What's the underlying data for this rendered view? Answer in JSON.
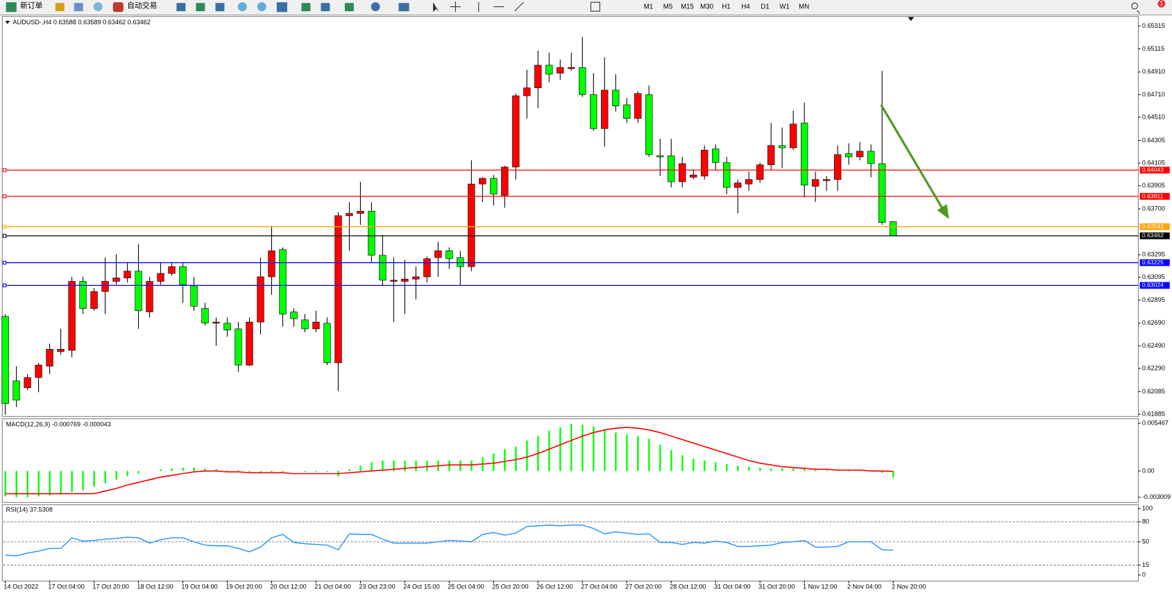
{
  "toolbar": {
    "new_order": "新订单",
    "auto_trading": "自动交易",
    "timeframes": [
      "M1",
      "M5",
      "M15",
      "M30",
      "H1",
      "H4",
      "D1",
      "W1",
      "MN"
    ],
    "badge": "1"
  },
  "chart_data": [
    {
      "type": "candlestick",
      "title": "AUDUSD-,H4 0.63588 0.63589 0.63462 0.63462",
      "x_labels": [
        "14 Oct 2022",
        "17 Oct 04:00",
        "17 Oct 20:00",
        "18 Oct 12:00",
        "19 Oct 04:00",
        "19 Oct 20:00",
        "20 Oct 12:00",
        "21 Oct 04:00",
        "23 Oct 23:00",
        "24 Oct 15:00",
        "25 Oct 04:00",
        "25 Oct 20:00",
        "26 Oct 12:00",
        "27 Oct 04:00",
        "27 Oct 20:00",
        "28 Oct 12:00",
        "31 Oct 04:00",
        "31 Oct 20:00",
        "1 Nov 12:00",
        "2 Nov 04:00",
        "2 Nov 20:00"
      ],
      "up_color": "#ff0000",
      "down_color": "#00ff00",
      "open": [
        0.6275,
        0.6218,
        0.6212,
        0.6221,
        0.6231,
        0.6244,
        0.6245,
        0.6306,
        0.6282,
        0.6297,
        0.6306,
        0.6309,
        0.6315,
        0.6279,
        0.6306,
        0.6313,
        0.6319,
        0.6302,
        0.6282,
        0.6269,
        0.6269,
        0.6264,
        0.6232,
        0.627,
        0.631,
        0.6334,
        0.6279,
        0.6272,
        0.6264,
        0.6269,
        0.6234,
        0.6364,
        0.6366,
        0.6368,
        0.6329,
        0.6306,
        0.6306,
        0.6308,
        0.631,
        0.6327,
        0.6333,
        0.6327,
        0.6319,
        0.6392,
        0.6397,
        0.6382,
        0.6407,
        0.647,
        0.6477,
        0.6497,
        0.649,
        0.6494,
        0.6495,
        0.6471,
        0.6441,
        0.6475,
        0.6462,
        0.645,
        0.6471,
        0.6417,
        0.6417,
        0.6394,
        0.6398,
        0.6399,
        0.6423,
        0.6411,
        0.6389,
        0.6392,
        0.6396,
        0.6409,
        0.6426,
        0.6424,
        0.6446,
        0.639,
        0.6395,
        0.6396,
        0.6419,
        0.6416,
        0.6421,
        0.641,
        0.63588
      ],
      "high": [
        0.6277,
        0.6231,
        0.6224,
        0.6234,
        0.6251,
        0.6264,
        0.631,
        0.631,
        0.63,
        0.6327,
        0.633,
        0.6323,
        0.6339,
        0.631,
        0.6323,
        0.6323,
        0.6323,
        0.631,
        0.6287,
        0.6274,
        0.6274,
        0.627,
        0.6274,
        0.6327,
        0.6355,
        0.6336,
        0.6282,
        0.6277,
        0.628,
        0.6274,
        0.6367,
        0.6376,
        0.6394,
        0.6376,
        0.6347,
        0.6327,
        0.6325,
        0.6319,
        0.6328,
        0.6341,
        0.6336,
        0.6333,
        0.6413,
        0.6398,
        0.64,
        0.6408,
        0.6472,
        0.6493,
        0.651,
        0.6508,
        0.6502,
        0.6508,
        0.6522,
        0.649,
        0.6504,
        0.6489,
        0.6468,
        0.6474,
        0.6479,
        0.6432,
        0.6432,
        0.6416,
        0.6405,
        0.6426,
        0.6427,
        0.6416,
        0.6396,
        0.6403,
        0.6411,
        0.6446,
        0.6442,
        0.6457,
        0.6464,
        0.6403,
        0.6399,
        0.6426,
        0.6428,
        0.6429,
        0.6427,
        0.6492,
        0.63589
      ],
      "low": [
        0.6188,
        0.6195,
        0.621,
        0.6208,
        0.6224,
        0.6241,
        0.6239,
        0.6277,
        0.628,
        0.6277,
        0.6303,
        0.6305,
        0.6264,
        0.6274,
        0.6303,
        0.6311,
        0.6287,
        0.628,
        0.6267,
        0.6249,
        0.6257,
        0.6226,
        0.6231,
        0.6259,
        0.6294,
        0.6266,
        0.6266,
        0.6261,
        0.6261,
        0.6232,
        0.6209,
        0.6333,
        0.6356,
        0.6323,
        0.6302,
        0.627,
        0.6277,
        0.629,
        0.6305,
        0.631,
        0.6317,
        0.6302,
        0.6315,
        0.6376,
        0.6373,
        0.6371,
        0.6396,
        0.645,
        0.6459,
        0.6482,
        0.6484,
        0.6492,
        0.6469,
        0.6439,
        0.6425,
        0.6456,
        0.6446,
        0.6446,
        0.6416,
        0.6399,
        0.6389,
        0.6389,
        0.6396,
        0.6396,
        0.6404,
        0.6383,
        0.6366,
        0.6386,
        0.6393,
        0.6404,
        0.6406,
        0.6422,
        0.638,
        0.6376,
        0.6386,
        0.6386,
        0.6409,
        0.6413,
        0.6398,
        0.6356,
        0.63462
      ],
      "close": [
        0.6198,
        0.6201,
        0.6221,
        0.6232,
        0.6246,
        0.6246,
        0.6306,
        0.6282,
        0.6297,
        0.6306,
        0.6309,
        0.6315,
        0.628,
        0.6306,
        0.6313,
        0.6319,
        0.6303,
        0.6284,
        0.6269,
        0.627,
        0.6263,
        0.6232,
        0.627,
        0.631,
        0.6333,
        0.6277,
        0.6273,
        0.6264,
        0.627,
        0.6234,
        0.6364,
        0.6366,
        0.6368,
        0.6329,
        0.6307,
        0.6307,
        0.6308,
        0.631,
        0.6326,
        0.6333,
        0.6326,
        0.6319,
        0.6392,
        0.6397,
        0.6383,
        0.6407,
        0.647,
        0.6477,
        0.6497,
        0.6489,
        0.6495,
        0.6495,
        0.6471,
        0.6441,
        0.6475,
        0.6461,
        0.645,
        0.6472,
        0.6418,
        0.6416,
        0.6394,
        0.641,
        0.64,
        0.6422,
        0.6411,
        0.6389,
        0.6393,
        0.6396,
        0.6409,
        0.6426,
        0.6424,
        0.6445,
        0.6391,
        0.6396,
        0.6396,
        0.6418,
        0.6416,
        0.6421,
        0.641,
        0.6358,
        0.63462
      ],
      "ylim": [
        0.61885,
        0.65315
      ],
      "yticks": [
        0.61885,
        0.62085,
        {
          "value": 0.6229,
          "label": "0.62290"
        },
        {
          "value": 0.6249,
          "label": "0.62490"
        },
        {
          "value": 0.6269,
          "label": "0.62690"
        },
        0.62895,
        0.63095,
        0.63295,
        {
          "value": 0.637,
          "label": "0.63700"
        },
        0.63905,
        0.64105,
        0.64305,
        {
          "value": 0.6451,
          "label": "0.64510"
        },
        {
          "value": 0.6471,
          "label": "0.64710"
        },
        {
          "value": 0.6491,
          "label": "0.64910"
        },
        0.65115,
        0.65315
      ],
      "levels": [
        {
          "value": 0.64043,
          "color": "#ff0000"
        },
        {
          "value": 0.63811,
          "color": "#ff0000"
        },
        {
          "value": 0.63543,
          "color": "#ffa500"
        },
        {
          "value": 0.63462,
          "color": "#000000"
        },
        {
          "value": 0.63225,
          "color": "#0000ff"
        },
        {
          "value": 0.63024,
          "color": "#0000ff"
        }
      ]
    },
    {
      "type": "macd",
      "title": "MACD(12,26,9) -0.000769 -0.000043",
      "histogram": {
        "color": "#00ff00",
        "values": [
          -0.0029,
          -0.003,
          -0.003,
          -0.0029,
          -0.0028,
          -0.0027,
          -0.0024,
          -0.0022,
          -0.0018,
          -0.0014,
          -0.001,
          -0.0006,
          -0.0003,
          0,
          0.0002,
          0.0003,
          0.0004,
          0.0004,
          0.0003,
          0.0002,
          0.0001,
          0.0001,
          -0.0002,
          -0.0003,
          -0.0002,
          -0.0001,
          0,
          -0.0001,
          -0.0001,
          -0.0001,
          -0.0006,
          0.0002,
          0.0006,
          0.001,
          0.0012,
          0.0012,
          0.0012,
          0.0012,
          0.0012,
          0.0012,
          0.0012,
          0.0012,
          0.0012,
          0.0016,
          0.002,
          0.0025,
          0.0028,
          0.0035,
          0.004,
          0.0046,
          0.005,
          0.0054,
          0.0053,
          0.0051,
          0.0047,
          0.0044,
          0.0042,
          0.004,
          0.0037,
          0.003,
          0.0024,
          0.0018,
          0.0014,
          0.0012,
          0.001,
          0.0008,
          0.0006,
          0.0005,
          0.0004,
          0.0003,
          0.0003,
          0.0003,
          0.0004,
          0.0002,
          0.0001,
          0.0001,
          0.0001,
          0.0001,
          0,
          -0.0002,
          -0.000769
        ]
      },
      "signal": {
        "color": "#ff0000",
        "values": [
          -0.0026,
          -0.0026,
          -0.0026,
          -0.0026,
          -0.0026,
          -0.0026,
          -0.0026,
          -0.0026,
          -0.0026,
          -0.0023,
          -0.002,
          -0.0016,
          -0.0013,
          -0.001,
          -0.0007,
          -0.0005,
          -0.0003,
          -0.0001,
          0,
          0,
          -0.0001,
          -0.0001,
          -0.0002,
          -0.0002,
          -0.0002,
          -0.0002,
          -0.0003,
          -0.0003,
          -0.0003,
          -0.0003,
          -0.0003,
          -0.0002,
          -0.0001,
          0,
          0.0001,
          0.0002,
          0.0003,
          0.0004,
          0.0005,
          0.0006,
          0.0007,
          0.0007,
          0.0007,
          0.0008,
          0.0009,
          0.0011,
          0.0013,
          0.0016,
          0.002,
          0.0025,
          0.003,
          0.0035,
          0.004,
          0.0044,
          0.0047,
          0.0049,
          0.005,
          0.0049,
          0.0047,
          0.0044,
          0.004,
          0.0036,
          0.0032,
          0.0028,
          0.0024,
          0.002,
          0.0016,
          0.0012,
          0.0009,
          0.0007,
          0.0005,
          0.0004,
          0.0003,
          0.0002,
          0.0002,
          0.0001,
          0.0001,
          0.0001,
          0,
          0,
          -4.3e-05
        ]
      },
      "ylim": [
        -0.003009,
        0.005467
      ],
      "yticks": [
        -0.003009,
        {
          "value": 0,
          "label": "0.00"
        },
        0.005467
      ]
    },
    {
      "type": "rsi",
      "title": "RSI(14) 37.5308",
      "color": "#1e90ff",
      "values": [
        30,
        29,
        33,
        36,
        40,
        40,
        56,
        51,
        52,
        54,
        55,
        57,
        56,
        48,
        53,
        56,
        56,
        50,
        45,
        44,
        44,
        40,
        35,
        42,
        56,
        61,
        49,
        47,
        46,
        45,
        38,
        62,
        61,
        61,
        54,
        48,
        48,
        48,
        48,
        50,
        52,
        51,
        50,
        61,
        64,
        60,
        63,
        73,
        74,
        75,
        74,
        75,
        75,
        70,
        62,
        65,
        63,
        61,
        62,
        49,
        49,
        46,
        49,
        48,
        51,
        49,
        43,
        43,
        44,
        45,
        49,
        50,
        52,
        42,
        42,
        43,
        50,
        50,
        50,
        38,
        37.5308
      ],
      "ylim": [
        0,
        100
      ],
      "yticks": [
        0,
        15,
        50,
        80,
        100
      ]
    }
  ]
}
